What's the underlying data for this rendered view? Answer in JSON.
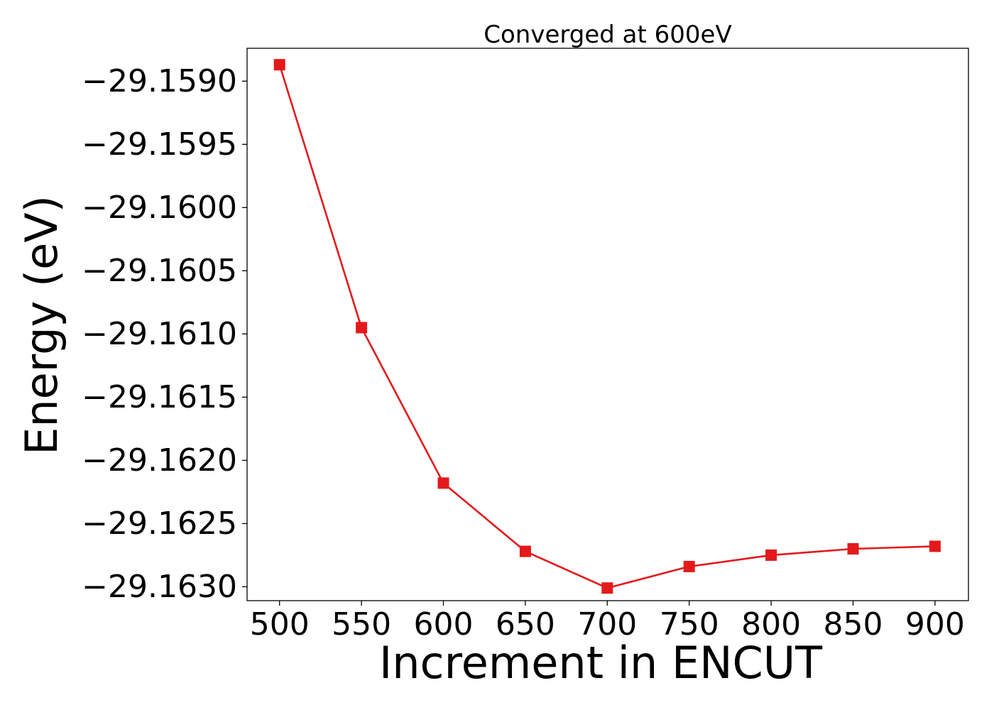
{
  "chart_data": {
    "type": "line",
    "title": "Converged at 600eV",
    "xlabel": "Increment in ENCUT",
    "ylabel": "Energy (eV)",
    "x": [
      500,
      550,
      600,
      650,
      700,
      750,
      800,
      850,
      900
    ],
    "series": [
      {
        "values": [
          -29.15887,
          -29.16095,
          -29.16218,
          -29.16272,
          -29.16301,
          -29.16284,
          -29.16275,
          -29.1627,
          -29.16268
        ],
        "color": "#e31a1c",
        "marker": "square"
      }
    ],
    "xticks": [
      500,
      550,
      600,
      650,
      700,
      750,
      800,
      850,
      900
    ],
    "xtick_labels": [
      "500",
      "550",
      "600",
      "650",
      "700",
      "750",
      "800",
      "850",
      "900"
    ],
    "yticks": [
      -29.159,
      -29.1595,
      -29.16,
      -29.1605,
      -29.161,
      -29.1615,
      -29.162,
      -29.1625,
      -29.163
    ],
    "ytick_labels": [
      "−29.1590",
      "−29.1595",
      "−29.1600",
      "−29.1605",
      "−29.1610",
      "−29.1615",
      "−29.1620",
      "−29.1625",
      "−29.1630"
    ],
    "xlim": [
      480.2,
      920.4
    ],
    "ylim": [
      -29.16311,
      -29.15874
    ],
    "grid": false,
    "legend": "none"
  }
}
